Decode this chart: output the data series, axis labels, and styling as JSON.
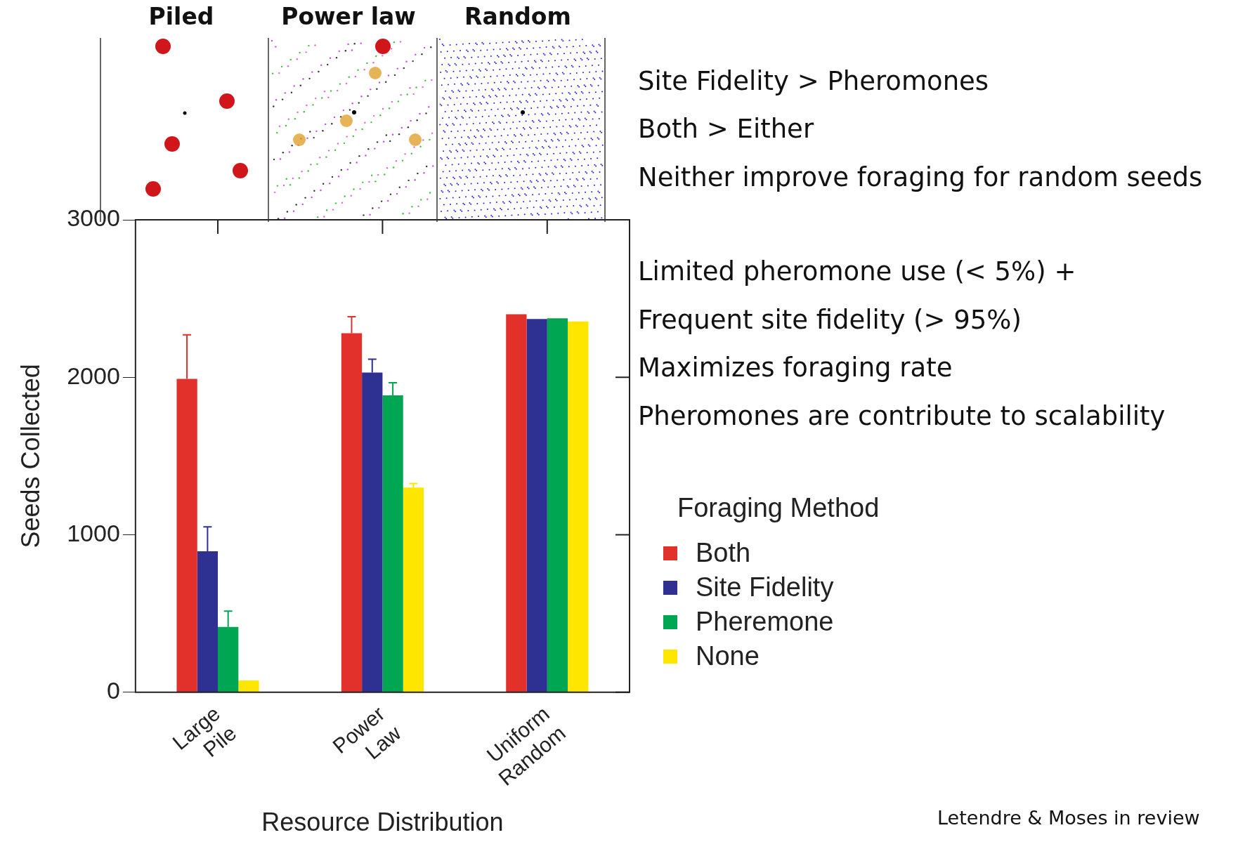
{
  "chart_data": {
    "type": "bar",
    "xlabel": "Resource Distribution",
    "ylabel": "Seeds Collected",
    "legend_title": "Foraging Method",
    "legend": "right",
    "grid": false,
    "categories": [
      "Large Pile",
      "Power Law",
      "Uniform Random"
    ],
    "ylim": [
      0,
      3000
    ],
    "yticks": [
      0,
      1000,
      2000,
      3000
    ],
    "series": [
      {
        "name": "Both",
        "color": "#e2302a",
        "values": [
          1990,
          2280,
          2400
        ],
        "errors": [
          [
            1990,
            2270
          ],
          [
            2280,
            2385
          ],
          null
        ]
      },
      {
        "name": "Site Fidelity",
        "color": "#2e3192",
        "values": [
          895,
          2030,
          2370
        ],
        "errors": [
          [
            895,
            1050
          ],
          [
            2030,
            2115
          ],
          null
        ]
      },
      {
        "name": "Pheremone",
        "color": "#00a651",
        "values": [
          415,
          1885,
          2375
        ],
        "errors": [
          [
            415,
            515
          ],
          [
            1885,
            1965
          ],
          null
        ]
      },
      {
        "name": "None",
        "color": "#ffe600",
        "values": [
          75,
          1300,
          2355
        ],
        "errors": [
          null,
          [
            1300,
            1325
          ],
          null
        ]
      }
    ],
    "annotations": [
      "Piled",
      "Power law",
      "Random",
      "Site Fidelity > Pheromones",
      "Both > Either",
      "Neither improve foraging for random seeds",
      "Limited pheromone use (< 5%) +",
      "Frequent site fidelity (> 95%)",
      "Maximizes foraging rate",
      "Pheromones are contribute to scalability",
      "Letendre & Moses in review"
    ]
  }
}
